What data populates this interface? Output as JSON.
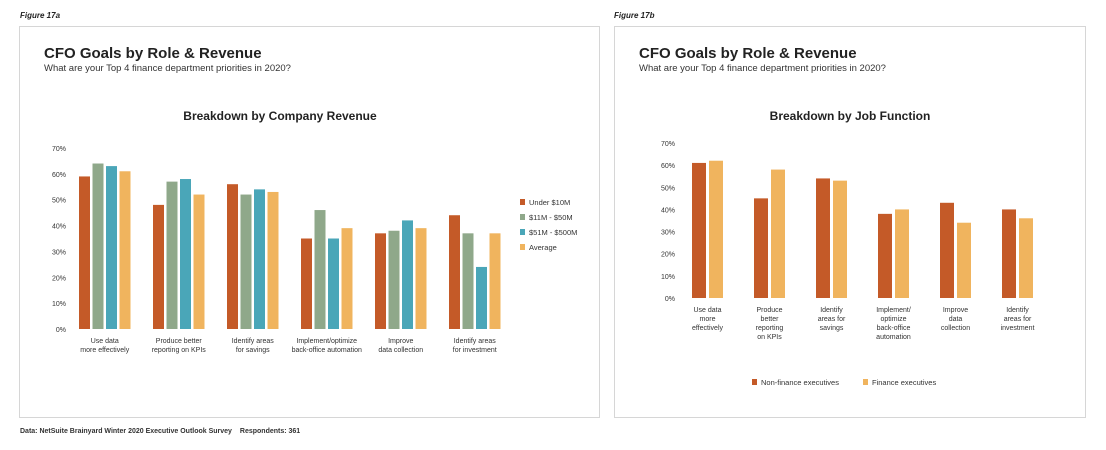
{
  "figure_a_label": "Figure 17a",
  "figure_b_label": "Figure 17b",
  "footer": {
    "source": "Data: NetSuite Brainyard Winter 2020 Executive Outlook Survey",
    "respondents": "Respondents: 361"
  },
  "colors": {
    "rust": "#c45a28",
    "sage": "#8fa88a",
    "teal": "#4aa6b8",
    "gold": "#f0b45e"
  },
  "chart_data": [
    {
      "type": "bar",
      "title": "CFO Goals by Role & Revenue",
      "subtitle": "What are your Top 4 finance department priorities in 2020?",
      "chart_title": "Breakdown by Company Revenue",
      "categories": [
        [
          "Use data",
          "more effectively"
        ],
        [
          "Produce better",
          "reporting on KPIs"
        ],
        [
          "Identify areas",
          "for savings"
        ],
        [
          "Implement/optimize",
          "back-office automation"
        ],
        [
          "Improve",
          "data collection"
        ],
        [
          "Identify areas",
          "for investment"
        ]
      ],
      "series": [
        {
          "name": "Under $10M",
          "color": "#c45a28",
          "values": [
            59,
            48,
            56,
            35,
            37,
            44
          ]
        },
        {
          "name": "$11M - $50M",
          "color": "#8fa88a",
          "values": [
            64,
            57,
            52,
            46,
            38,
            37
          ]
        },
        {
          "name": "$51M - $500M",
          "color": "#4aa6b8",
          "values": [
            63,
            58,
            54,
            35,
            42,
            24
          ]
        },
        {
          "name": "Average",
          "color": "#f0b45e",
          "values": [
            61,
            52,
            53,
            39,
            39,
            37
          ]
        }
      ],
      "y_ticks": [
        "0%",
        "10%",
        "20%",
        "30%",
        "40%",
        "50%",
        "60%",
        "70%"
      ],
      "ylim": [
        0,
        70
      ],
      "legend_position": "right",
      "grid": false
    },
    {
      "type": "bar",
      "title": "CFO Goals by Role & Revenue",
      "subtitle": "What are your Top 4 finance department priorities in 2020?",
      "chart_title": "Breakdown by Job Function",
      "categories": [
        [
          "Use data",
          "more",
          "effectively"
        ],
        [
          "Produce",
          "better",
          "reporting",
          "on KPIs"
        ],
        [
          "Identify",
          "areas for",
          "savings"
        ],
        [
          "Implement/",
          "optimize",
          "back-office",
          "automation"
        ],
        [
          "Improve",
          "data",
          "collection"
        ],
        [
          "Identify",
          "areas for",
          "investment"
        ]
      ],
      "series": [
        {
          "name": "Non-finance executives",
          "color": "#c45a28",
          "values": [
            61,
            45,
            54,
            38,
            43,
            40
          ]
        },
        {
          "name": "Finance executives",
          "color": "#f0b45e",
          "values": [
            62,
            58,
            53,
            40,
            34,
            36
          ]
        }
      ],
      "y_ticks": [
        "0%",
        "10%",
        "20%",
        "30%",
        "40%",
        "50%",
        "60%",
        "70%"
      ],
      "ylim": [
        0,
        70
      ],
      "legend_position": "bottom",
      "grid": false
    }
  ]
}
